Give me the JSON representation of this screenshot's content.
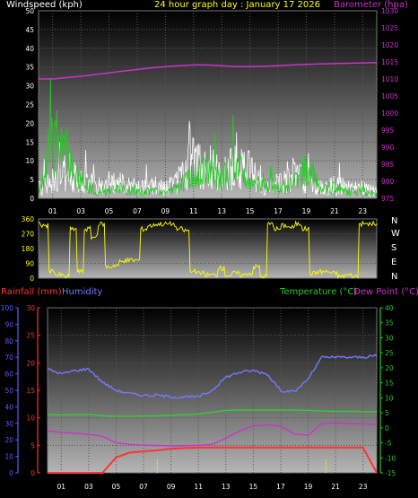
{
  "header": {
    "wind_label": "Windspeed (kph)",
    "title": "24 hour graph day : January 17 2026",
    "baro_label": "Barometer (hpa)"
  },
  "bottom_labels": {
    "rain": "Rainfall (mm)",
    "humidity": "Humidity",
    "temp": "Temperature (°C)",
    "dew": "Dew Point (°C)"
  },
  "directions": [
    "N",
    "W",
    "S",
    "E",
    "N"
  ],
  "colors": {
    "wind": "#ffffff",
    "gust": "#22cc22",
    "barometer": "#cc33cc",
    "direction": "#ffff00",
    "rain": "#ff3333",
    "rain_rate": "#ffff00",
    "humidity": "#7777ff",
    "temperature": "#33cc33",
    "dewpoint": "#cc33cc",
    "hum_axis": "#5a5aff",
    "temp_axis": "#22cc22"
  },
  "chart_data": [
    {
      "type": "line",
      "name": "wind-barometer",
      "x_ticks": [
        "01",
        "03",
        "05",
        "07",
        "09",
        "11",
        "13",
        "15",
        "17",
        "19",
        "21",
        "23"
      ],
      "ylim_left": [
        0,
        50
      ],
      "yticks_left": [
        "0",
        "5",
        "10",
        "15",
        "20",
        "25",
        "30",
        "35",
        "40",
        "45",
        "50"
      ],
      "ylim_right": [
        975,
        1030
      ],
      "yticks_right": [
        "975",
        "980",
        "985",
        "990",
        "995",
        "1000",
        "1005",
        "1010",
        "1015",
        "1020",
        "1025",
        "1030"
      ],
      "x": [
        0,
        1,
        2,
        3,
        4,
        5,
        6,
        7,
        8,
        9,
        10,
        11,
        12,
        13,
        14,
        15,
        16,
        17,
        18,
        19,
        20,
        21,
        22,
        23,
        24
      ],
      "series": [
        {
          "name": "Windspeed (kph)",
          "axis": "left",
          "values": [
            3,
            5,
            8,
            6,
            4,
            4,
            5,
            3,
            4,
            3,
            5,
            12,
            10,
            6,
            10,
            8,
            3,
            5,
            7,
            5,
            3,
            4,
            3,
            3,
            2
          ]
        },
        {
          "name": "",
          "axis": "left",
          "values": [
            2,
            17,
            12,
            5,
            2,
            2,
            3,
            2,
            2,
            2,
            3,
            8,
            8,
            6,
            9,
            6,
            3,
            3,
            4,
            9,
            3,
            3,
            2,
            2,
            1
          ]
        },
        {
          "name": "Barometer (hpa)",
          "axis": "right",
          "values": [
            1010,
            1010,
            1010.4,
            1010.8,
            1011.3,
            1011.8,
            1012.3,
            1012.8,
            1013.2,
            1013.6,
            1013.9,
            1014.1,
            1014.1,
            1013.9,
            1013.6,
            1013.6,
            1013.7,
            1013.9,
            1014.1,
            1014.3,
            1014.4,
            1014.5,
            1014.6,
            1014.7,
            1014.8
          ]
        }
      ],
      "grid": true
    },
    {
      "type": "scatter",
      "name": "wind-direction",
      "yticks": [
        "0",
        "90",
        "180",
        "270",
        "360"
      ],
      "ylim": [
        0,
        360
      ],
      "x": [
        0,
        0.5,
        1,
        1.5,
        2,
        2.5,
        3,
        3.5,
        4,
        4.5,
        5,
        5.5,
        6,
        6.5,
        7,
        7.5,
        8,
        8.5,
        9,
        9.5,
        10,
        10.5,
        11,
        11.5,
        12,
        12.5,
        13,
        13.5,
        14,
        14.5,
        15,
        15.5,
        16,
        16.5,
        17,
        17.5,
        18,
        18.5,
        19,
        19.5,
        20,
        20.5,
        21,
        21.5,
        22,
        22.5,
        23,
        23.5,
        24
      ],
      "values": [
        330,
        320,
        40,
        20,
        10,
        300,
        40,
        300,
        250,
        330,
        70,
        80,
        100,
        110,
        110,
        300,
        320,
        330,
        330,
        330,
        300,
        290,
        40,
        30,
        20,
        20,
        60,
        20,
        30,
        20,
        30,
        70,
        10,
        330,
        300,
        320,
        310,
        330,
        300,
        30,
        40,
        40,
        30,
        10,
        20,
        10,
        330,
        330,
        330
      ],
      "grid": true
    },
    {
      "type": "line",
      "name": "rain-humidity-temperature",
      "x_ticks": [
        "01",
        "03",
        "05",
        "07",
        "09",
        "11",
        "13",
        "15",
        "17",
        "19",
        "21",
        "23"
      ],
      "ylim_hum": [
        0,
        100
      ],
      "yticks_hum": [
        "0",
        "10",
        "20",
        "30",
        "40",
        "50",
        "60",
        "70",
        "80",
        "90",
        "100"
      ],
      "ylim_rain": [
        0,
        30
      ],
      "yticks_rain": [
        "0",
        "5",
        "10",
        "15",
        "20",
        "25",
        "30"
      ],
      "ylim_temp": [
        -15,
        40
      ],
      "yticks_temp": [
        "-15",
        "-10",
        "-5",
        "0",
        "5",
        "10",
        "15",
        "20",
        "25",
        "30",
        "35",
        "40"
      ],
      "x": [
        0,
        1,
        2,
        3,
        4,
        5,
        6,
        7,
        8,
        9,
        10,
        11,
        12,
        13,
        14,
        15,
        16,
        17,
        18,
        19,
        20,
        21,
        22,
        23,
        24
      ],
      "series": [
        {
          "name": "Humidity",
          "axis": "hum",
          "values": [
            63,
            60,
            62,
            63,
            55,
            50,
            48,
            47,
            47,
            46,
            46,
            46,
            50,
            58,
            61,
            62,
            60,
            50,
            49,
            57,
            70,
            70,
            70,
            70,
            71
          ]
        },
        {
          "name": "Temperature (°C)",
          "axis": "temp",
          "values": [
            4.5,
            4.3,
            4.4,
            4.5,
            4,
            3.8,
            3.8,
            3.9,
            4,
            4.2,
            4.4,
            4.6,
            5.2,
            5.8,
            5.9,
            5.9,
            5.9,
            5.9,
            5.9,
            5.8,
            5.6,
            5.5,
            5.5,
            5.4,
            5.4
          ]
        },
        {
          "name": "Dew Point (°C)",
          "axis": "temp",
          "values": [
            -1,
            -1.5,
            -1.8,
            -2.2,
            -2.8,
            -5,
            -5.5,
            -5.8,
            -5.9,
            -6,
            -6,
            -5.8,
            -5.5,
            -3.5,
            -1,
            0.7,
            1,
            0.5,
            -2,
            -2.5,
            1.5,
            1.6,
            1.5,
            1.3,
            1.1
          ]
        },
        {
          "name": "Rainfall (mm)",
          "axis": "rain",
          "values": [
            0,
            0,
            0,
            0,
            0,
            2.8,
            3.7,
            3.9,
            4.1,
            4.4,
            4.5,
            4.6,
            4.6,
            4.6,
            4.6,
            4.6,
            4.6,
            4.6,
            4.6,
            4.6,
            4.6,
            4.6,
            4.6,
            4.6,
            0
          ]
        }
      ],
      "rain_rate_marks_x": [
        8,
        20.3
      ],
      "grid": true
    }
  ]
}
